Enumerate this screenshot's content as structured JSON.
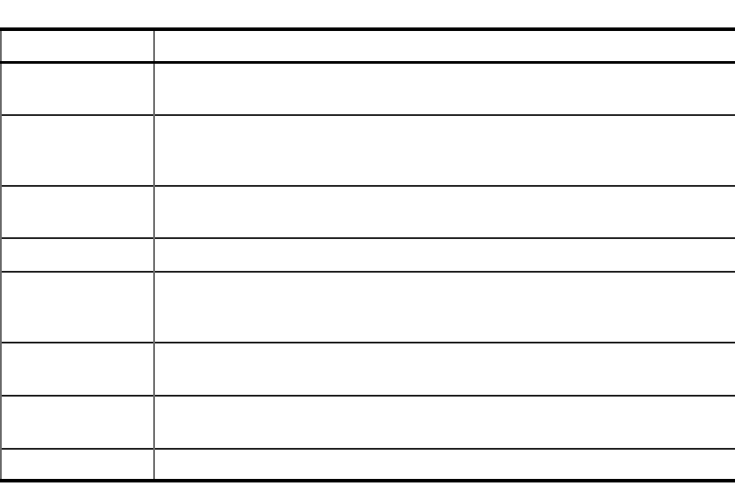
{
  "table": {
    "headers": [
      "",
      ""
    ],
    "rows": [
      [
        "",
        ""
      ],
      [
        "",
        ""
      ],
      [
        "",
        ""
      ],
      [
        "",
        ""
      ],
      [
        "",
        ""
      ],
      [
        "",
        ""
      ],
      [
        "",
        ""
      ],
      [
        "",
        ""
      ]
    ]
  }
}
